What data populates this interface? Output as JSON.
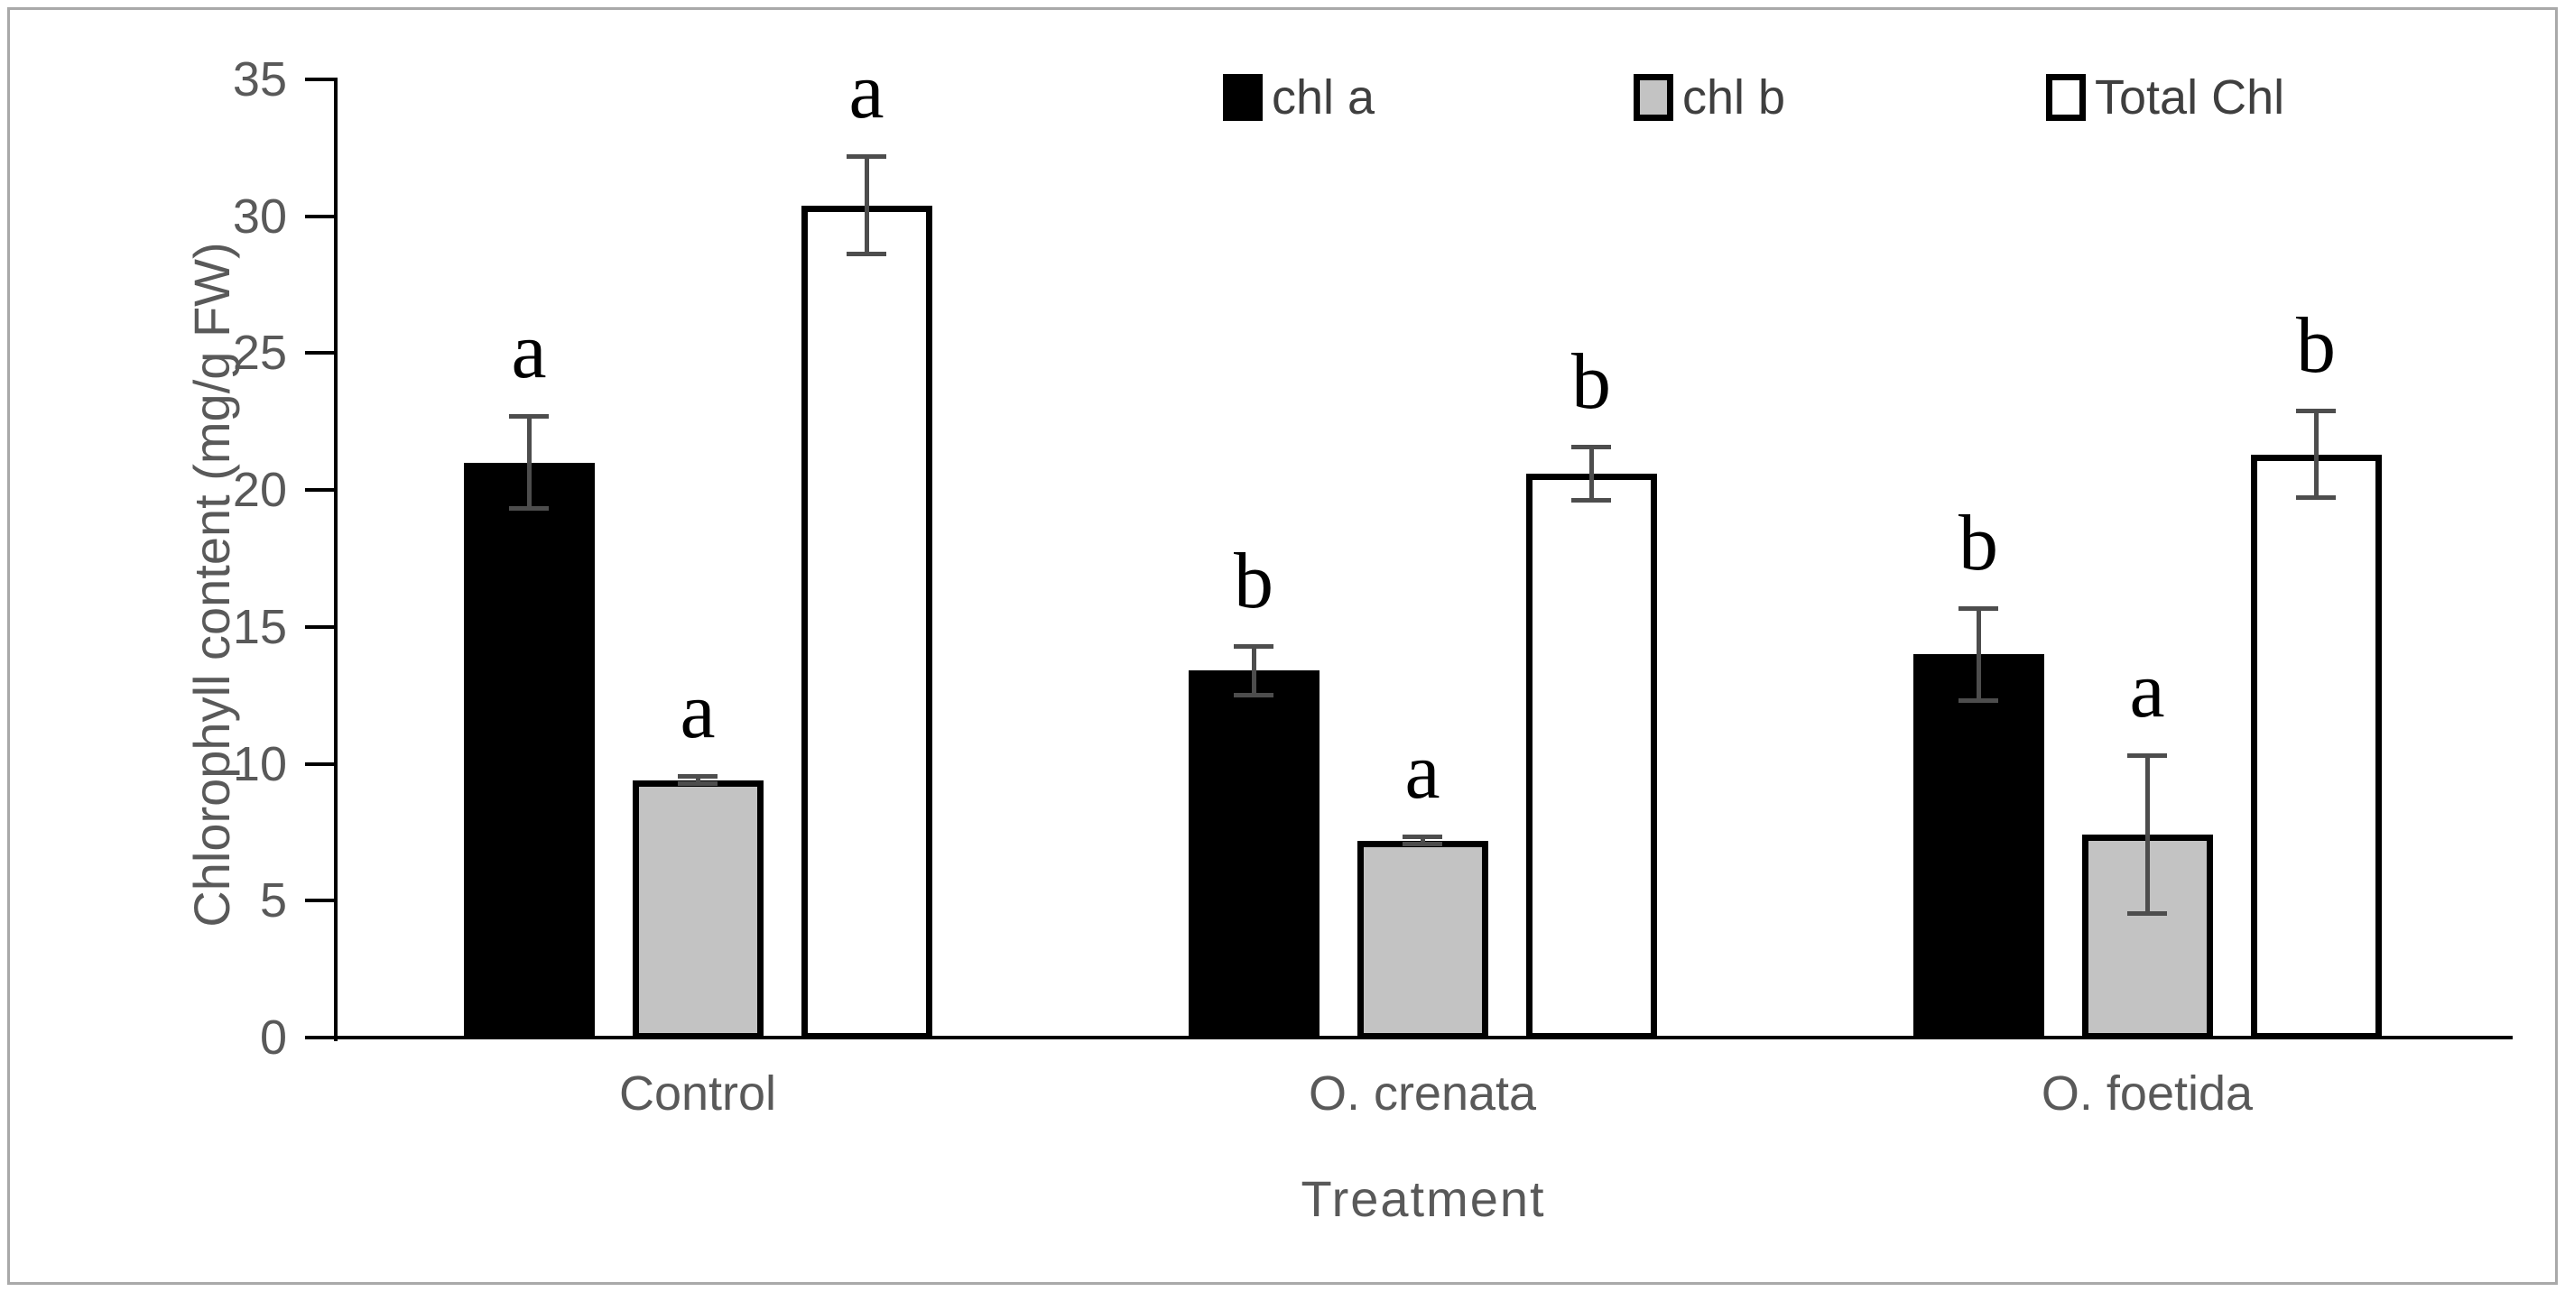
{
  "chart_data": {
    "type": "bar",
    "title": "",
    "xlabel": "Treatment",
    "ylabel": "Chlorophyll content (mg/g FW)",
    "ylim": [
      0,
      35
    ],
    "yticks": [
      0,
      5,
      10,
      15,
      20,
      25,
      30,
      35
    ],
    "grid": false,
    "legend_position": "top",
    "categories": [
      "Control",
      "O. crenata",
      "O. foetida"
    ],
    "series": [
      {
        "name": "chl a",
        "fill": "#000000",
        "border": "#000000",
        "values": [
          21.0,
          13.4,
          14.0
        ],
        "errors": [
          1.7,
          0.9,
          1.7
        ],
        "letters": [
          "a",
          "b",
          "b"
        ]
      },
      {
        "name": "chl b",
        "fill": "#c3c3c3",
        "border": "#000000",
        "values": [
          9.4,
          7.2,
          7.4
        ],
        "errors": [
          0.15,
          0.15,
          2.9
        ],
        "letters": [
          "a",
          "a",
          "a"
        ]
      },
      {
        "name": "Total Chl",
        "fill": "#ffffff",
        "border": "#000000",
        "values": [
          30.4,
          20.6,
          21.3
        ],
        "errors": [
          1.8,
          1.0,
          1.6
        ],
        "letters": [
          "a",
          "b",
          "b"
        ]
      }
    ],
    "error_bar_color": "#4d4d4d",
    "axis_color": "#000000",
    "label_color": "#595959"
  }
}
